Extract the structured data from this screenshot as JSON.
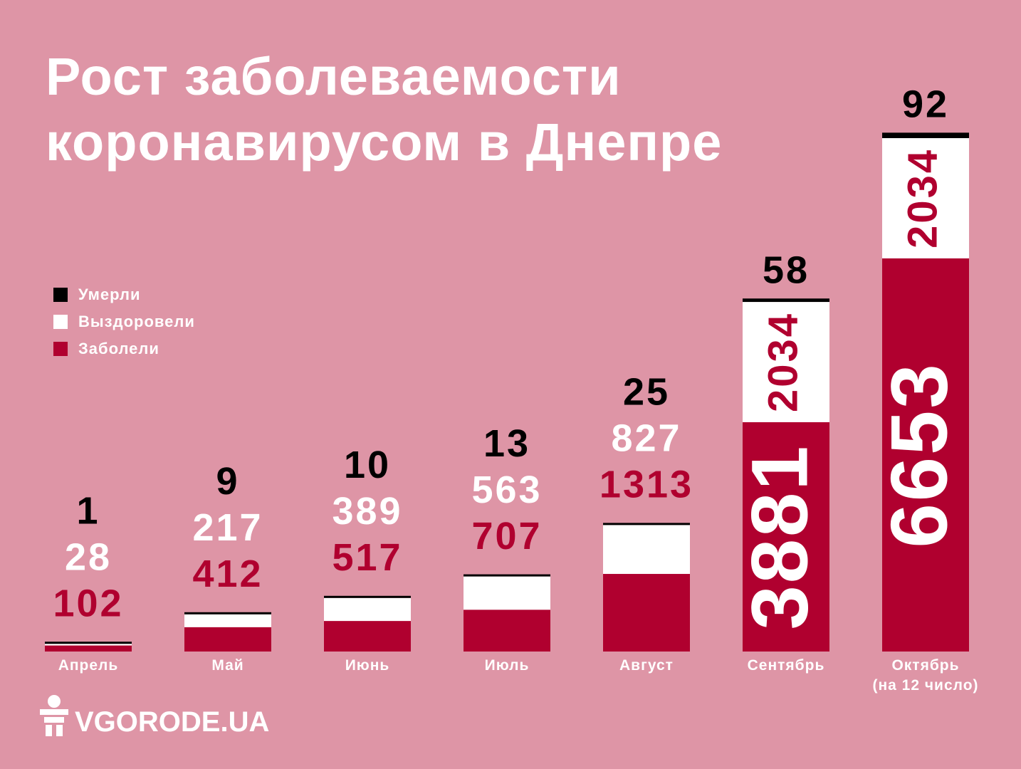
{
  "chart_data": {
    "type": "stacked-bar",
    "title": "Рост заболеваемости\nкоронавирусом в Днепре",
    "categories": [
      "Апрель",
      "Май",
      "Июнь",
      "Июль",
      "Август",
      "Сентябрь",
      "Октябрь\n(на 12 число)"
    ],
    "series": [
      {
        "name": "Заболели",
        "color": "#b0002f",
        "values": [
          102,
          412,
          517,
          707,
          1313,
          3881,
          6653
        ]
      },
      {
        "name": "Выздоровели",
        "color": "#ffffff",
        "values": [
          28,
          217,
          389,
          563,
          827,
          2034,
          2034
        ]
      },
      {
        "name": "Умерли",
        "color": "#000000",
        "values": [
          1,
          9,
          10,
          13,
          25,
          58,
          92
        ]
      }
    ],
    "source": "VGORODE.UA"
  }
}
